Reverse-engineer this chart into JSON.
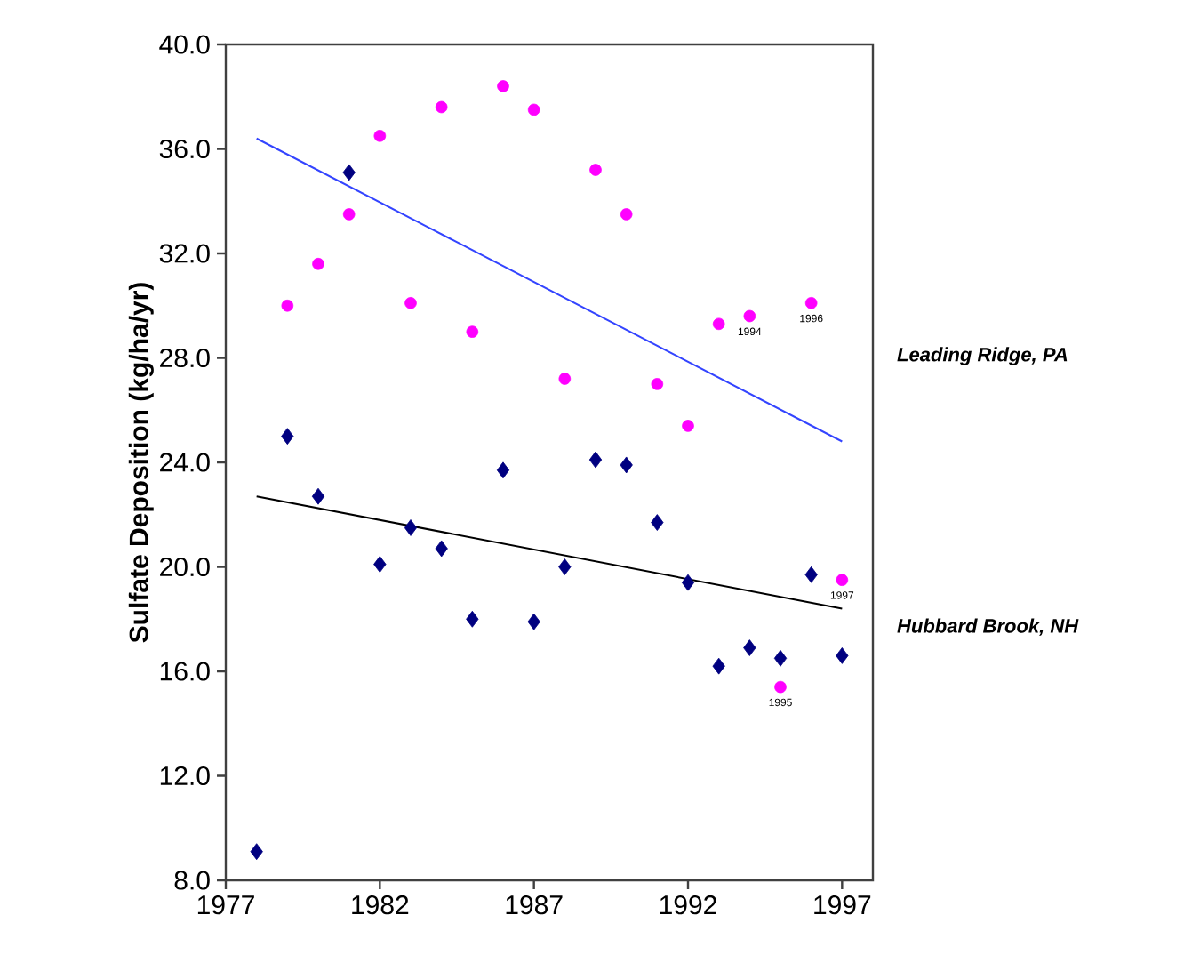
{
  "chart_data": {
    "type": "scatter",
    "ylabel": "Sulfate Deposition (kg/ha/yr)",
    "xlim": [
      1977,
      1998
    ],
    "ylim": [
      8,
      40
    ],
    "xticks": [
      1977,
      1982,
      1987,
      1992,
      1997
    ],
    "yticks": [
      {
        "value": 8,
        "label": "8.0"
      },
      {
        "value": 12,
        "label": "12.0"
      },
      {
        "value": 16,
        "label": "16.0"
      },
      {
        "value": 20,
        "label": "20.0"
      },
      {
        "value": 24,
        "label": "24.0"
      },
      {
        "value": 28,
        "label": "28.0"
      },
      {
        "value": 32,
        "label": "32.0"
      },
      {
        "value": 36,
        "label": "36.0"
      },
      {
        "value": 40,
        "label": "40.0"
      }
    ],
    "grid": false,
    "legend": false,
    "series": [
      {
        "name": "Leading Ridge, PA",
        "marker": "circle",
        "color": "#ff00ff",
        "x": [
          1979,
          1980,
          1981,
          1982,
          1983,
          1984,
          1985,
          1986,
          1987,
          1988,
          1989,
          1990,
          1991,
          1992,
          1993,
          1994,
          1995,
          1996,
          1997
        ],
        "values": [
          30.0,
          31.6,
          33.5,
          36.5,
          30.1,
          37.6,
          29.0,
          38.4,
          37.5,
          27.2,
          35.2,
          33.5,
          27.0,
          25.4,
          29.3,
          29.6,
          15.4,
          30.1,
          19.5
        ]
      },
      {
        "name": "Hubbard Brook, NH",
        "marker": "diamond",
        "color": "#000080",
        "x": [
          1978,
          1979,
          1980,
          1981,
          1982,
          1983,
          1984,
          1985,
          1986,
          1987,
          1988,
          1989,
          1990,
          1991,
          1992,
          1993,
          1994,
          1995,
          1996,
          1997
        ],
        "values": [
          9.1,
          25.0,
          22.7,
          35.1,
          20.1,
          21.5,
          20.7,
          18.0,
          23.7,
          17.9,
          20.0,
          24.1,
          23.9,
          21.7,
          19.4,
          16.2,
          16.9,
          16.5,
          19.7,
          16.6
        ]
      },
      {
        "type": "line",
        "marker": "none",
        "color": "#3344ff",
        "x": [
          1978,
          1997
        ],
        "values": [
          36.4,
          24.8
        ]
      },
      {
        "type": "line",
        "marker": "none",
        "color": "#000000",
        "x": [
          1978,
          1997
        ],
        "values": [
          22.7,
          18.4
        ]
      }
    ],
    "annotations": [
      {
        "text": "1994",
        "x": 1994,
        "y": 29.6
      },
      {
        "text": "1996",
        "x": 1996,
        "y": 30.1
      },
      {
        "text": "1995",
        "x": 1995,
        "y": 15.4
      },
      {
        "text": "1997",
        "x": 1997,
        "y": 19.5
      }
    ]
  }
}
